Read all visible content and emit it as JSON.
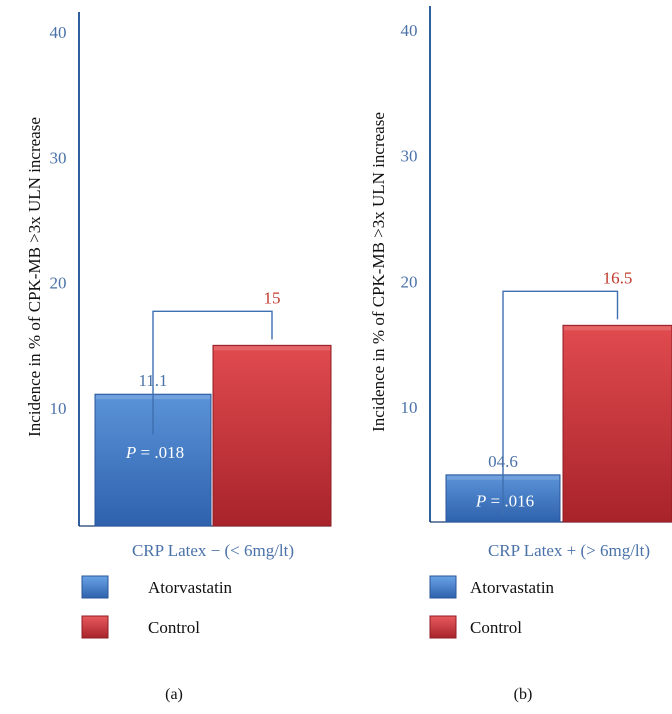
{
  "colors": {
    "atorvastatin": "#3e78c4",
    "control": "#c8343a",
    "axis": "#2f5f9e",
    "tick": "#4a72a8",
    "bracket": "#3e6fb0",
    "control_label": "#c0392b"
  },
  "chart_data": [
    {
      "type": "bar",
      "panel_label": "(a)",
      "xlabel": "CRP Latex − (< 6mg/lt)",
      "ylabel": "Incidence in % of CPK-MB >3x ULN increase",
      "yticks": [
        "10",
        "20",
        "30",
        "40"
      ],
      "ylim": [
        0,
        40
      ],
      "categories": [
        "Atorvastatin",
        "Control"
      ],
      "values": [
        11.1,
        15
      ],
      "data_labels": [
        "11.1",
        "15"
      ],
      "p_label": "P",
      "p_value": " = .018",
      "legend": [
        "Atorvastatin",
        "Control"
      ]
    },
    {
      "type": "bar",
      "panel_label": "(b)",
      "xlabel": "CRP Latex + (> 6mg/lt)",
      "ylabel": "Incidence in % of CPK-MB >3x ULN increase",
      "yticks": [
        "10",
        "20",
        "30",
        "40"
      ],
      "ylim": [
        0,
        40
      ],
      "categories": [
        "Atorvastatin",
        "Control"
      ],
      "values": [
        4.6,
        16.5
      ],
      "data_labels": [
        "04.6",
        "16.5"
      ],
      "p_label": "P",
      "p_value": " = .016",
      "legend": [
        "Atorvastatin",
        "Control"
      ]
    }
  ]
}
